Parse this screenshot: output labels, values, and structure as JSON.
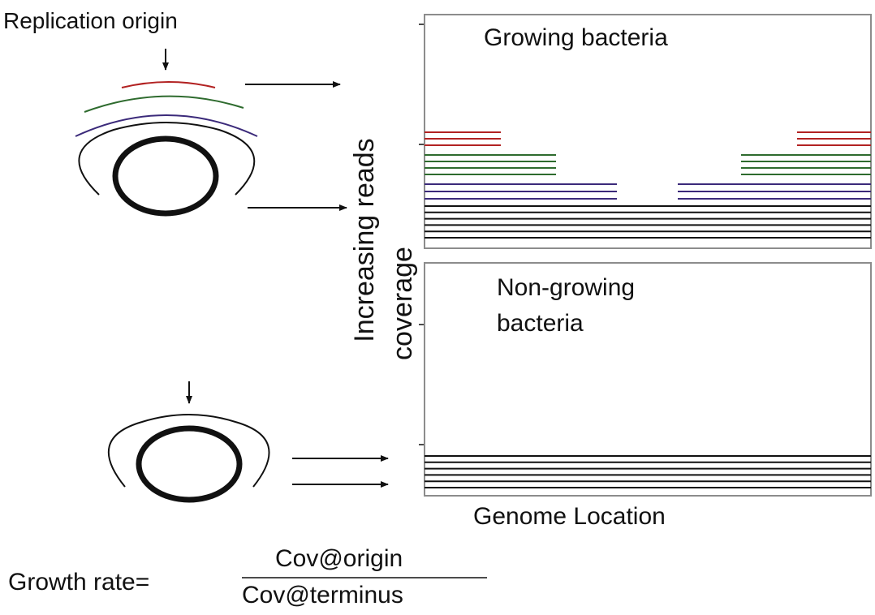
{
  "labels": {
    "replication_origin": "Replication origin",
    "growing": "Growing bacteria",
    "non_growing_line1": "Non-growing",
    "non_growing_line2": "bacteria",
    "y_axis_line1": "Increasing reads",
    "y_axis_line2": "coverage",
    "x_axis": "Genome Location",
    "growth_rate": "Growth rate=",
    "numerator": "Cov@origin",
    "denominator": "Cov@terminus"
  },
  "colors": {
    "red": "#b22222",
    "green": "#2e6b2e",
    "purple": "#3b2a7a",
    "black": "#111111",
    "panel_border": "#8c8c8c"
  },
  "panels": {
    "growing": {
      "read_layers": [
        {
          "color": "red",
          "lines": 3
        },
        {
          "color": "green",
          "lines": 4
        },
        {
          "color": "purple",
          "lines": 3
        },
        {
          "color": "black",
          "lines": 6
        }
      ]
    },
    "non_growing": {
      "read_layers": [
        {
          "color": "black",
          "lines": 6
        }
      ]
    }
  },
  "chromosomes": {
    "growing": {
      "arcs": [
        "red",
        "green",
        "purple",
        "black"
      ]
    },
    "non_growing": {
      "arcs": [
        "black"
      ]
    }
  }
}
